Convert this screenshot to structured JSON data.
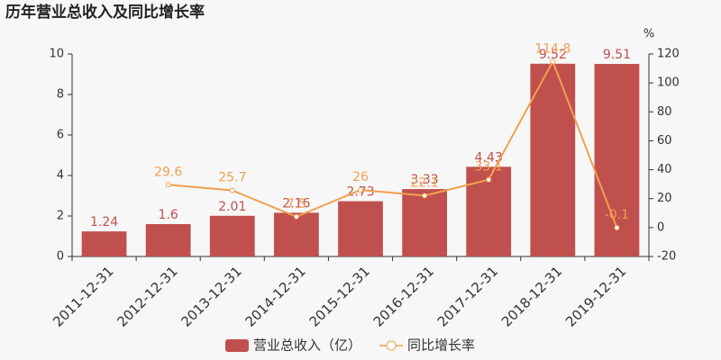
{
  "chart_data": {
    "type": "bar",
    "title": "历年营业总收入及同比增长率",
    "categories": [
      "2011-12-31",
      "2012-12-31",
      "2013-12-31",
      "2014-12-31",
      "2015-12-31",
      "2016-12-31",
      "2017-12-31",
      "2018-12-31",
      "2019-12-31"
    ],
    "series": [
      {
        "name": "营业总收入（亿）",
        "type": "bar",
        "color": "#c0504d",
        "values": [
          1.24,
          1.6,
          2.01,
          2.16,
          2.73,
          3.33,
          4.43,
          9.52,
          9.51
        ]
      },
      {
        "name": "同比增长率",
        "type": "line",
        "axis": "y2",
        "color": "#f0a050",
        "values": [
          null,
          29.6,
          25.7,
          7.5,
          26,
          22.1,
          33.1,
          114.8,
          -0.1
        ]
      }
    ],
    "ylim": [
      0,
      10
    ],
    "yticks": [
      0,
      2,
      4,
      6,
      8,
      10
    ],
    "y2lim": [
      -20,
      120
    ],
    "y2ticks": [
      -20,
      0,
      20,
      40,
      60,
      80,
      100,
      120
    ],
    "y2_label": "%"
  }
}
